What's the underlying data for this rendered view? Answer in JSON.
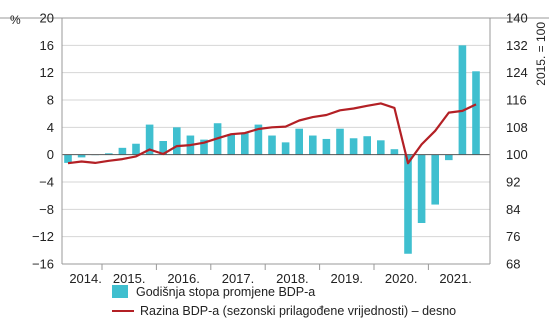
{
  "chart_data": {
    "type": "bar",
    "left_unit": "%",
    "right_unit": "2015. = 100",
    "years": [
      "2014.",
      "2015.",
      "2016.",
      "2017.",
      "2018.",
      "2019.",
      "2020.",
      "2021."
    ],
    "left_axis": {
      "ylim": [
        -16,
        20
      ],
      "ticks": [
        20,
        16,
        12,
        8,
        4,
        0,
        -4,
        -8,
        -12,
        -16
      ]
    },
    "right_axis": {
      "ylim": [
        68,
        140
      ],
      "ticks": [
        140,
        132,
        124,
        116,
        108,
        100,
        92,
        84,
        76,
        68
      ]
    },
    "series": [
      {
        "name": "Godišnja stopa promjene BDP-a",
        "axis": "left",
        "type": "bar",
        "color": "#3fbfcf",
        "values": [
          -1.2,
          -0.4,
          0.0,
          0.2,
          1.0,
          1.6,
          4.4,
          2.0,
          4.0,
          2.8,
          2.2,
          4.6,
          3.0,
          3.2,
          4.4,
          2.8,
          1.8,
          3.8,
          2.8,
          2.3,
          3.8,
          2.4,
          2.7,
          2.1,
          0.8,
          -14.5,
          -10.0,
          -7.3,
          -0.8,
          16.0,
          12.2
        ]
      },
      {
        "name": "Razina BDP-a (sezonski prilagođene vrijednosti) – desno",
        "axis": "right",
        "type": "line",
        "color": "#b32025",
        "values": [
          97.5,
          98.0,
          97.6,
          98.2,
          98.7,
          99.5,
          101.5,
          100.2,
          102.5,
          102.8,
          103.5,
          104.8,
          106.0,
          106.3,
          107.5,
          108.0,
          108.2,
          110.0,
          111.0,
          111.6,
          113.0,
          113.5,
          114.3,
          115.0,
          113.7,
          97.5,
          103.0,
          107.0,
          112.3,
          112.8,
          114.7
        ]
      }
    ]
  }
}
